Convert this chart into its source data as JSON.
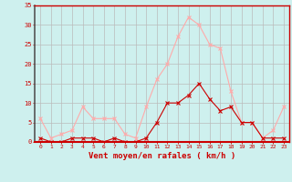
{
  "x": [
    0,
    1,
    2,
    3,
    4,
    5,
    6,
    7,
    8,
    9,
    10,
    11,
    12,
    13,
    14,
    15,
    16,
    17,
    18,
    19,
    20,
    21,
    22,
    23
  ],
  "y_rafales": [
    6,
    1,
    2,
    3,
    9,
    6,
    6,
    6,
    2,
    1,
    9,
    16,
    20,
    27,
    32,
    30,
    25,
    24,
    13,
    5,
    5,
    1,
    3,
    9
  ],
  "y_moyen": [
    1,
    0,
    0,
    1,
    1,
    1,
    0,
    1,
    0,
    0,
    1,
    5,
    10,
    10,
    12,
    15,
    11,
    8,
    9,
    5,
    5,
    1,
    1,
    1
  ],
  "color_rafales": "#ffaaaa",
  "color_moyen": "#cc0000",
  "bg_color": "#cef0ee",
  "grid_color": "#bbbbbb",
  "axis_color": "#cc0000",
  "spine_color": "#888888",
  "xlabel": "Vent moyen/en rafales ( km/h )",
  "ylim": [
    0,
    35
  ],
  "xlim": [
    -0.5,
    23.5
  ],
  "yticks": [
    0,
    5,
    10,
    15,
    20,
    25,
    30,
    35
  ],
  "xticks": [
    0,
    1,
    2,
    3,
    4,
    5,
    6,
    7,
    8,
    9,
    10,
    11,
    12,
    13,
    14,
    15,
    16,
    17,
    18,
    19,
    20,
    21,
    22,
    23
  ],
  "marker": "x",
  "linewidth": 0.8,
  "markersize": 3.0
}
